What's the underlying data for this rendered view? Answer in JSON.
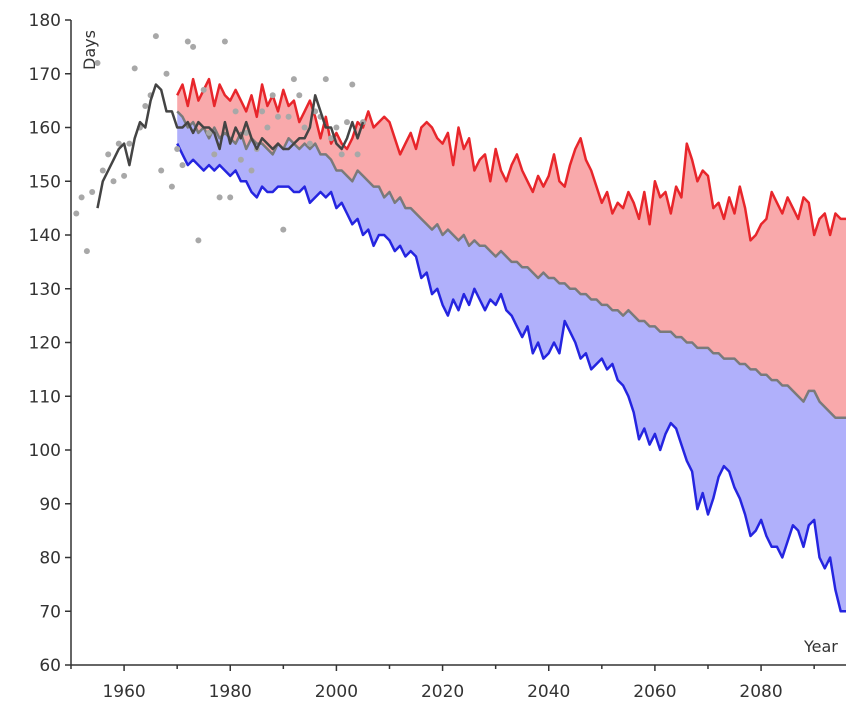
{
  "chart_data": {
    "type": "area",
    "title": "",
    "xlabel": "Year",
    "ylabel": "Days",
    "xlim": [
      1950,
      2096
    ],
    "ylim": [
      60,
      180
    ],
    "x_ticks": [
      1960,
      1980,
      2000,
      2020,
      2040,
      2060,
      2080
    ],
    "y_ticks": [
      60,
      70,
      80,
      90,
      100,
      110,
      120,
      130,
      140,
      150,
      160,
      170,
      180
    ],
    "grid": false,
    "colors": {
      "red_line": "#e8262b",
      "red_fill": "#f9a9ab",
      "blue_line": "#2525e0",
      "blue_fill": "#b0b0fb",
      "gray_line": "#7a7a7a",
      "observed_line": "#444444",
      "observed_points": "#a8a8a8",
      "axis": "#333333"
    },
    "series": [
      {
        "x": [
          1970,
          1971,
          1972,
          1973,
          1974,
          1975,
          1976,
          1977,
          1978,
          1979,
          1980,
          1981,
          1982,
          1983,
          1984,
          1985,
          1986,
          1987,
          1988,
          1989,
          1990,
          1991,
          1992,
          1993,
          1994,
          1995,
          1996,
          1997,
          1998,
          1999,
          2000,
          2001,
          2002,
          2003,
          2004,
          2005,
          2006,
          2007,
          2008,
          2009,
          2010,
          2011,
          2012,
          2013,
          2014,
          2015,
          2016,
          2017,
          2018,
          2019,
          2020,
          2021,
          2022,
          2023,
          2024,
          2025,
          2026,
          2027,
          2028,
          2029,
          2030,
          2031,
          2032,
          2033,
          2034,
          2035,
          2036,
          2037,
          2038,
          2039,
          2040,
          2041,
          2042,
          2043,
          2044,
          2045,
          2046,
          2047,
          2048,
          2049,
          2050,
          2051,
          2052,
          2053,
          2054,
          2055,
          2056,
          2057,
          2058,
          2059,
          2060,
          2061,
          2062,
          2063,
          2064,
          2065,
          2066,
          2067,
          2068,
          2069,
          2070,
          2071,
          2072,
          2073,
          2074,
          2075,
          2076,
          2077,
          2078,
          2079,
          2080,
          2081,
          2082,
          2083,
          2084,
          2085,
          2086,
          2087,
          2088,
          2089,
          2090,
          2091,
          2092,
          2093,
          2094,
          2095,
          2096
        ],
        "values": [
          166,
          168,
          164,
          169,
          165,
          167,
          169,
          164,
          168,
          166,
          165,
          167,
          165,
          163,
          166,
          162,
          168,
          164,
          166,
          163,
          167,
          164,
          165,
          161,
          163,
          165,
          162,
          158,
          162,
          157,
          159,
          157,
          156,
          158,
          161,
          160,
          163,
          160,
          161,
          162,
          161,
          158,
          155,
          157,
          159,
          156,
          160,
          161,
          160,
          158,
          157,
          159,
          153,
          160,
          156,
          158,
          152,
          154,
          155,
          150,
          156,
          152,
          150,
          153,
          155,
          152,
          150,
          148,
          151,
          149,
          151,
          155,
          150,
          149,
          153,
          156,
          158,
          154,
          152,
          149,
          146,
          148,
          144,
          146,
          145,
          148,
          146,
          143,
          148,
          142,
          150,
          147,
          148,
          144,
          149,
          147,
          157,
          154,
          150,
          152,
          151,
          145,
          146,
          143,
          147,
          144,
          149,
          145,
          139,
          140,
          142,
          143,
          148,
          146,
          144,
          147,
          145,
          143,
          147,
          146,
          140,
          143,
          144,
          140,
          144,
          143,
          143
        ]
      },
      {
        "x": [
          1970,
          1971,
          1972,
          1973,
          1974,
          1975,
          1976,
          1977,
          1978,
          1979,
          1980,
          1981,
          1982,
          1983,
          1984,
          1985,
          1986,
          1987,
          1988,
          1989,
          1990,
          1991,
          1992,
          1993,
          1994,
          1995,
          1996,
          1997,
          1998,
          1999,
          2000,
          2001,
          2002,
          2003,
          2004,
          2005,
          2006,
          2007,
          2008,
          2009,
          2010,
          2011,
          2012,
          2013,
          2014,
          2015,
          2016,
          2017,
          2018,
          2019,
          2020,
          2021,
          2022,
          2023,
          2024,
          2025,
          2026,
          2027,
          2028,
          2029,
          2030,
          2031,
          2032,
          2033,
          2034,
          2035,
          2036,
          2037,
          2038,
          2039,
          2040,
          2041,
          2042,
          2043,
          2044,
          2045,
          2046,
          2047,
          2048,
          2049,
          2050,
          2051,
          2052,
          2053,
          2054,
          2055,
          2056,
          2057,
          2058,
          2059,
          2060,
          2061,
          2062,
          2063,
          2064,
          2065,
          2066,
          2067,
          2068,
          2069,
          2070,
          2071,
          2072,
          2073,
          2074,
          2075,
          2076,
          2077,
          2078,
          2079,
          2080,
          2081,
          2082,
          2083,
          2084,
          2085,
          2086,
          2087,
          2088,
          2089,
          2090,
          2091,
          2092,
          2093,
          2094,
          2095,
          2096
        ],
        "values": [
          163,
          162,
          160,
          161,
          159,
          160,
          158,
          160,
          158,
          159,
          158,
          157,
          159,
          156,
          158,
          157,
          157,
          156,
          155,
          157,
          156,
          158,
          157,
          156,
          157,
          156,
          157,
          155,
          155,
          154,
          152,
          152,
          151,
          150,
          152,
          151,
          150,
          149,
          149,
          147,
          148,
          146,
          147,
          145,
          145,
          144,
          143,
          142,
          141,
          142,
          140,
          141,
          140,
          139,
          140,
          138,
          139,
          138,
          138,
          137,
          136,
          137,
          136,
          135,
          135,
          134,
          134,
          133,
          132,
          133,
          132,
          132,
          131,
          131,
          130,
          130,
          129,
          129,
          128,
          128,
          127,
          127,
          126,
          126,
          125,
          126,
          125,
          124,
          124,
          123,
          123,
          122,
          122,
          122,
          121,
          121,
          120,
          120,
          119,
          119,
          119,
          118,
          118,
          117,
          117,
          117,
          116,
          116,
          115,
          115,
          114,
          114,
          113,
          113,
          112,
          112,
          111,
          110,
          109,
          111,
          111,
          109,
          108,
          107,
          106,
          106,
          106
        ]
      },
      {
        "x": [
          1970,
          1971,
          1972,
          1973,
          1974,
          1975,
          1976,
          1977,
          1978,
          1979,
          1980,
          1981,
          1982,
          1983,
          1984,
          1985,
          1986,
          1987,
          1988,
          1989,
          1990,
          1991,
          1992,
          1993,
          1994,
          1995,
          1996,
          1997,
          1998,
          1999,
          2000,
          2001,
          2002,
          2003,
          2004,
          2005,
          2006,
          2007,
          2008,
          2009,
          2010,
          2011,
          2012,
          2013,
          2014,
          2015,
          2016,
          2017,
          2018,
          2019,
          2020,
          2021,
          2022,
          2023,
          2024,
          2025,
          2026,
          2027,
          2028,
          2029,
          2030,
          2031,
          2032,
          2033,
          2034,
          2035,
          2036,
          2037,
          2038,
          2039,
          2040,
          2041,
          2042,
          2043,
          2044,
          2045,
          2046,
          2047,
          2048,
          2049,
          2050,
          2051,
          2052,
          2053,
          2054,
          2055,
          2056,
          2057,
          2058,
          2059,
          2060,
          2061,
          2062,
          2063,
          2064,
          2065,
          2066,
          2067,
          2068,
          2069,
          2070,
          2071,
          2072,
          2073,
          2074,
          2075,
          2076,
          2077,
          2078,
          2079,
          2080,
          2081,
          2082,
          2083,
          2084,
          2085,
          2086,
          2087,
          2088,
          2089,
          2090,
          2091,
          2092,
          2093,
          2094,
          2095,
          2096
        ],
        "values": [
          157,
          155,
          153,
          154,
          153,
          152,
          153,
          152,
          153,
          152,
          151,
          152,
          150,
          150,
          148,
          147,
          149,
          148,
          148,
          149,
          149,
          149,
          148,
          148,
          149,
          146,
          147,
          148,
          147,
          148,
          145,
          146,
          144,
          142,
          143,
          140,
          141,
          138,
          140,
          140,
          139,
          137,
          138,
          136,
          137,
          136,
          132,
          133,
          129,
          130,
          127,
          125,
          128,
          126,
          129,
          127,
          130,
          128,
          126,
          128,
          127,
          129,
          126,
          125,
          123,
          121,
          123,
          118,
          120,
          117,
          118,
          120,
          118,
          124,
          122,
          120,
          117,
          118,
          115,
          116,
          117,
          115,
          116,
          113,
          112,
          110,
          107,
          102,
          104,
          101,
          103,
          100,
          103,
          105,
          104,
          101,
          98,
          96,
          89,
          92,
          88,
          91,
          95,
          97,
          96,
          93,
          91,
          88,
          84,
          85,
          87,
          84,
          82,
          82,
          80,
          83,
          86,
          85,
          82,
          86,
          87,
          80,
          78,
          80,
          74,
          70,
          70
        ]
      },
      {
        "x": [
          1955,
          1956,
          1957,
          1958,
          1959,
          1960,
          1961,
          1962,
          1963,
          1964,
          1965,
          1966,
          1967,
          1968,
          1969,
          1970,
          1971,
          1972,
          1973,
          1974,
          1975,
          1976,
          1977,
          1978,
          1979,
          1980,
          1981,
          1982,
          1983,
          1984,
          1985,
          1986,
          1987,
          1988,
          1989,
          1990,
          1991,
          1992,
          1993,
          1994,
          1995,
          1996,
          1997,
          1998,
          1999,
          2000,
          2001,
          2002,
          2003,
          2004,
          2005
        ],
        "values": [
          145,
          150,
          152,
          154,
          156,
          157,
          153,
          158,
          161,
          160,
          165,
          168,
          167,
          163,
          163,
          160,
          160,
          161,
          159,
          161,
          160,
          160,
          159,
          156,
          161,
          157,
          160,
          158,
          161,
          158,
          156,
          158,
          157,
          156,
          157,
          156,
          156,
          157,
          158,
          158,
          160,
          166,
          163,
          160,
          160,
          157,
          156,
          158,
          161,
          158,
          161
        ]
      }
    ],
    "observed_points": {
      "x": [
        1951,
        1952,
        1953,
        1954,
        1955,
        1956,
        1957,
        1958,
        1959,
        1960,
        1961,
        1962,
        1963,
        1964,
        1965,
        1966,
        1967,
        1968,
        1969,
        1970,
        1971,
        1972,
        1973,
        1974,
        1975,
        1976,
        1977,
        1978,
        1979,
        1980,
        1981,
        1982,
        1983,
        1984,
        1985,
        1986,
        1987,
        1988,
        1989,
        1990,
        1991,
        1992,
        1993,
        1994,
        1995,
        1996,
        1997,
        1998,
        1999,
        2000,
        2001,
        2002,
        2003,
        2004,
        2005
      ],
      "values": [
        144,
        147,
        137,
        148,
        172,
        152,
        155,
        150,
        157,
        151,
        157,
        171,
        160,
        164,
        166,
        177,
        152,
        170,
        149,
        156,
        153,
        176,
        175,
        139,
        167,
        159,
        155,
        147,
        176,
        147,
        163,
        154,
        159,
        152,
        156,
        163,
        160,
        166,
        162,
        141,
        162,
        169,
        166,
        160,
        157,
        163,
        162,
        169,
        158,
        160,
        155,
        161,
        168,
        155,
        161
      ]
    }
  }
}
